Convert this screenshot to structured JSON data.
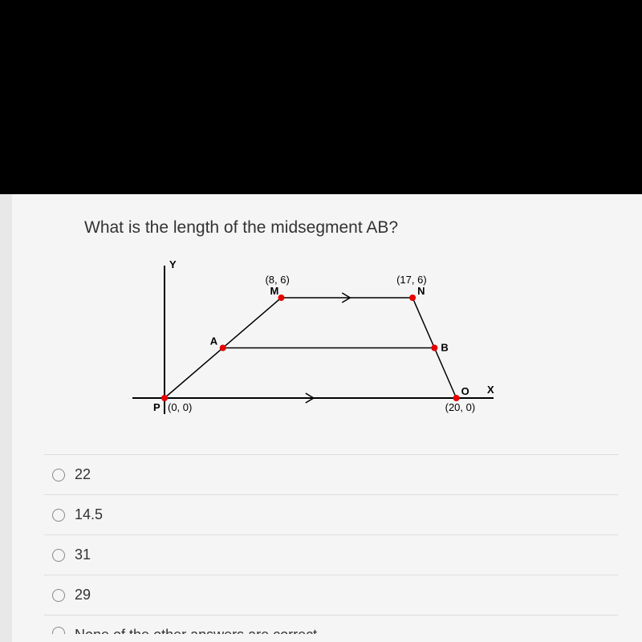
{
  "question": {
    "text": "What is the length of the midsegment AB?"
  },
  "diagram": {
    "type": "geometry-plot",
    "background_color": "#ffffff",
    "axis_color": "#000000",
    "line_color": "#000000",
    "point_color": "#e60000",
    "point_radius": 4,
    "text_color": "#000000",
    "font_size": 13,
    "label_font_weight": "bold",
    "axes": {
      "y_label": "Y",
      "x_label": "X"
    },
    "points": {
      "P": {
        "x": 0,
        "y": 0,
        "label": "P",
        "coord_label": "(0, 0)"
      },
      "M": {
        "x": 8,
        "y": 6,
        "label": "M",
        "coord_label": "(8, 6)"
      },
      "N": {
        "x": 17,
        "y": 6,
        "label": "N",
        "coord_label": "(17, 6)"
      },
      "O": {
        "x": 20,
        "y": 0,
        "label": "O",
        "coord_label": "(20, 0)"
      },
      "A": {
        "x": 4,
        "y": 3,
        "label": "A"
      },
      "B": {
        "x": 18.5,
        "y": 3,
        "label": "B"
      }
    },
    "segments": [
      {
        "from": "P",
        "to": "M"
      },
      {
        "from": "M",
        "to": "N",
        "arrow_mid": true
      },
      {
        "from": "N",
        "to": "O"
      },
      {
        "from": "A",
        "to": "B"
      }
    ],
    "xaxis_arrow_mid": true
  },
  "options": [
    {
      "label": "22",
      "selected": false
    },
    {
      "label": "14.5",
      "selected": false
    },
    {
      "label": "31",
      "selected": false
    },
    {
      "label": "29",
      "selected": false
    },
    {
      "label": "None of the other answers are correct",
      "selected": false
    }
  ],
  "styling": {
    "body_bg": "#000000",
    "paper_bg": "#f5f5f5",
    "option_border": "#dddddd",
    "radio_border": "#888888"
  }
}
